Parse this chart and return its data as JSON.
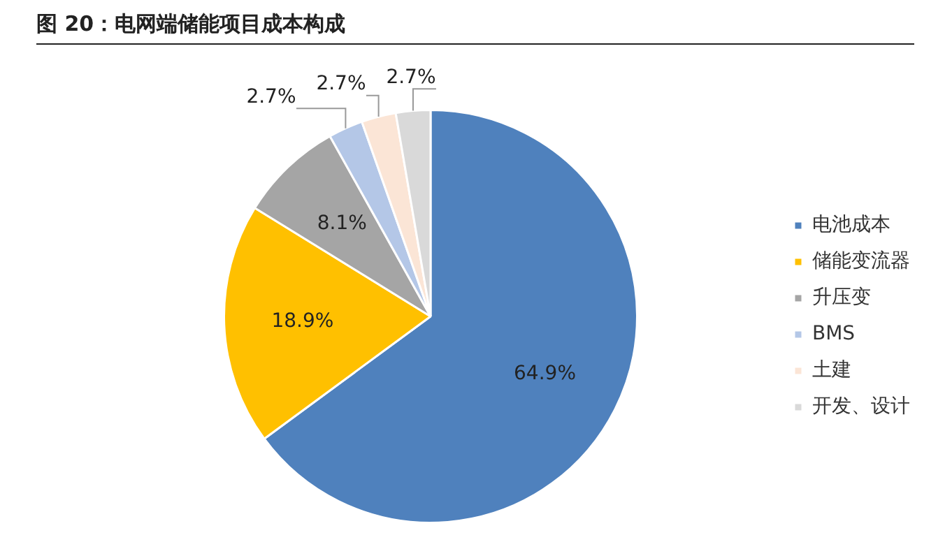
{
  "chart_data": {
    "type": "pie",
    "title": "图 20：电网端储能项目成本构成",
    "categories": [
      "电池成本",
      "储能变流器",
      "升压变",
      "BMS",
      "土建",
      "开发、设计"
    ],
    "values": [
      64.9,
      18.9,
      8.1,
      2.7,
      2.7,
      2.7
    ],
    "value_labels": [
      "64.9%",
      "18.9%",
      "8.1%",
      "2.7%",
      "2.7%",
      "2.7%"
    ],
    "colors": [
      "#4f81bd",
      "#ffc000",
      "#a5a5a5",
      "#b4c7e7",
      "#fbe5d6",
      "#d9d9d9"
    ],
    "legend": "right"
  }
}
